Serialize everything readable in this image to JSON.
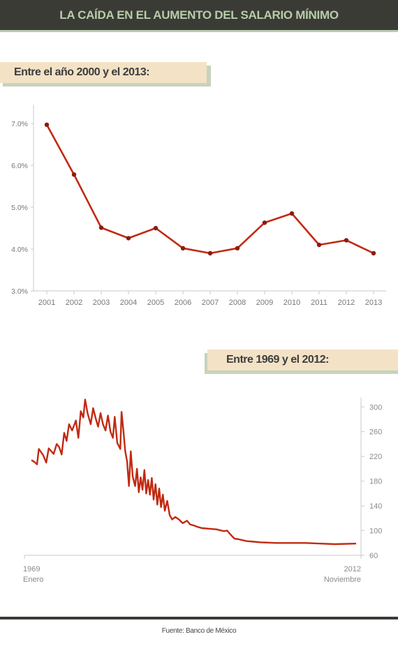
{
  "header": {
    "title": "LA CAÍDA EN EL AUMENTO DEL SALARIO MÍNIMO"
  },
  "colors": {
    "header_bg": "#3b3b36",
    "header_text": "#b7cda9",
    "banner_bg": "#f3e2c6",
    "banner_shadow": "#c7d3bb",
    "series": "#c12a12",
    "marker": "#8b1c0e"
  },
  "chart_data": [
    {
      "type": "line",
      "title": "Entre el año 2000 y el 2013:",
      "x": [
        "2001",
        "2002",
        "2003",
        "2004",
        "2005",
        "2006",
        "2007",
        "2008",
        "2009",
        "2010",
        "2011",
        "2012",
        "2013"
      ],
      "y": [
        6.97,
        5.78,
        4.51,
        4.26,
        4.5,
        4.02,
        3.9,
        4.02,
        4.63,
        4.85,
        4.1,
        4.21,
        3.9
      ],
      "ylim": [
        3.0,
        7.0
      ],
      "y_ticks": [
        "3.0%",
        "4.0%",
        "5.0%",
        "6.0%",
        "7.0%"
      ],
      "grid": false,
      "markers": true
    },
    {
      "type": "line",
      "title": "Entre 1969 y el 2012:",
      "x_start_label": {
        "year": "1969",
        "month": "Enero"
      },
      "x_end_label": {
        "year": "2012",
        "month": "Noviembre"
      },
      "x_range": [
        "1969-01",
        "2012-11"
      ],
      "ylim": [
        60,
        315
      ],
      "y_ticks": [
        "60",
        "100",
        "140",
        "180",
        "220",
        "260",
        "300"
      ],
      "y_axis_side": "right",
      "series_approx": [
        [
          "1969-01",
          214
        ],
        [
          "1969-06",
          211
        ],
        [
          "1969-10",
          207
        ],
        [
          "1970-01",
          232
        ],
        [
          "1970-08",
          222
        ],
        [
          "1971-01",
          210
        ],
        [
          "1971-05",
          233
        ],
        [
          "1972-01",
          224
        ],
        [
          "1972-06",
          240
        ],
        [
          "1972-10",
          235
        ],
        [
          "1973-02",
          223
        ],
        [
          "1973-06",
          258
        ],
        [
          "1973-10",
          245
        ],
        [
          "1974-02",
          272
        ],
        [
          "1974-07",
          262
        ],
        [
          "1975-01",
          278
        ],
        [
          "1975-05",
          250
        ],
        [
          "1975-09",
          293
        ],
        [
          "1976-01",
          283
        ],
        [
          "1976-04",
          312
        ],
        [
          "1976-08",
          290
        ],
        [
          "1977-01",
          272
        ],
        [
          "1977-05",
          298
        ],
        [
          "1977-09",
          282
        ],
        [
          "1978-01",
          268
        ],
        [
          "1978-05",
          290
        ],
        [
          "1978-09",
          272
        ],
        [
          "1979-01",
          262
        ],
        [
          "1979-05",
          286
        ],
        [
          "1979-09",
          260
        ],
        [
          "1980-01",
          250
        ],
        [
          "1980-04",
          284
        ],
        [
          "1980-08",
          242
        ],
        [
          "1981-01",
          232
        ],
        [
          "1981-03",
          292
        ],
        [
          "1981-06",
          262
        ],
        [
          "1981-09",
          228
        ],
        [
          "1981-12",
          212
        ],
        [
          "1982-03",
          172
        ],
        [
          "1982-06",
          228
        ],
        [
          "1982-09",
          188
        ],
        [
          "1983-01",
          172
        ],
        [
          "1983-04",
          200
        ],
        [
          "1983-07",
          162
        ],
        [
          "1983-10",
          186
        ],
        [
          "1984-01",
          166
        ],
        [
          "1984-04",
          198
        ],
        [
          "1984-07",
          160
        ],
        [
          "1984-10",
          182
        ],
        [
          "1985-01",
          158
        ],
        [
          "1985-04",
          185
        ],
        [
          "1985-07",
          150
        ],
        [
          "1985-10",
          175
        ],
        [
          "1986-01",
          142
        ],
        [
          "1986-04",
          168
        ],
        [
          "1986-07",
          138
        ],
        [
          "1986-10",
          158
        ],
        [
          "1987-01",
          132
        ],
        [
          "1987-05",
          148
        ],
        [
          "1987-09",
          125
        ],
        [
          "1988-01",
          118
        ],
        [
          "1988-06",
          122
        ],
        [
          "1988-12",
          118
        ],
        [
          "1989-06",
          112
        ],
        [
          "1990-01",
          116
        ],
        [
          "1990-06",
          110
        ],
        [
          "1991-01",
          108
        ],
        [
          "1991-06",
          106
        ],
        [
          "1992-01",
          104
        ],
        [
          "1993-01",
          103
        ],
        [
          "1994-01",
          102
        ],
        [
          "1995-01",
          99
        ],
        [
          "1995-06",
          100
        ],
        [
          "1996-01",
          92
        ],
        [
          "1996-06",
          87
        ],
        [
          "1997-01",
          86
        ],
        [
          "1998-01",
          83
        ],
        [
          "1999-01",
          82
        ],
        [
          "2000-01",
          81
        ],
        [
          "2002-01",
          80
        ],
        [
          "2004-01",
          80
        ],
        [
          "2006-01",
          80
        ],
        [
          "2008-01",
          79
        ],
        [
          "2010-01",
          78
        ],
        [
          "2012-11",
          79
        ]
      ]
    }
  ],
  "footer": {
    "source": "Fuente: Banco de México"
  }
}
